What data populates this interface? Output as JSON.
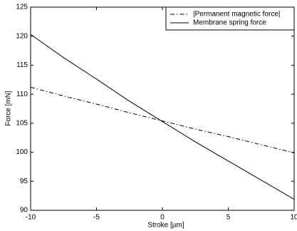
{
  "chart_data": {
    "type": "line",
    "x_label": "Stroke [µm]",
    "y_label": "Force [mN]",
    "x": [
      -10,
      -7.5,
      -5,
      -2.5,
      0,
      2.5,
      5,
      7.5,
      10
    ],
    "series": [
      {
        "name": "|Permanent magnetic force|",
        "color": "#000000",
        "style": "dashdot",
        "values": [
          111.2,
          109.7,
          108.3,
          106.8,
          105.4,
          104.0,
          102.7,
          101.3,
          99.9
        ]
      },
      {
        "name": "Membrane spring force",
        "color": "#000000",
        "style": "solid",
        "values": [
          120.3,
          116.3,
          112.6,
          108.8,
          105.3,
          101.8,
          98.5,
          95.2,
          91.9
        ]
      }
    ],
    "xlim": [
      -10,
      10
    ],
    "xticks": [
      -10,
      -5,
      0,
      5,
      10
    ],
    "ylim": [
      90,
      125
    ],
    "yticks": [
      90,
      95,
      100,
      105,
      110,
      115,
      120,
      125
    ],
    "grid": false,
    "legend": "upper right"
  }
}
